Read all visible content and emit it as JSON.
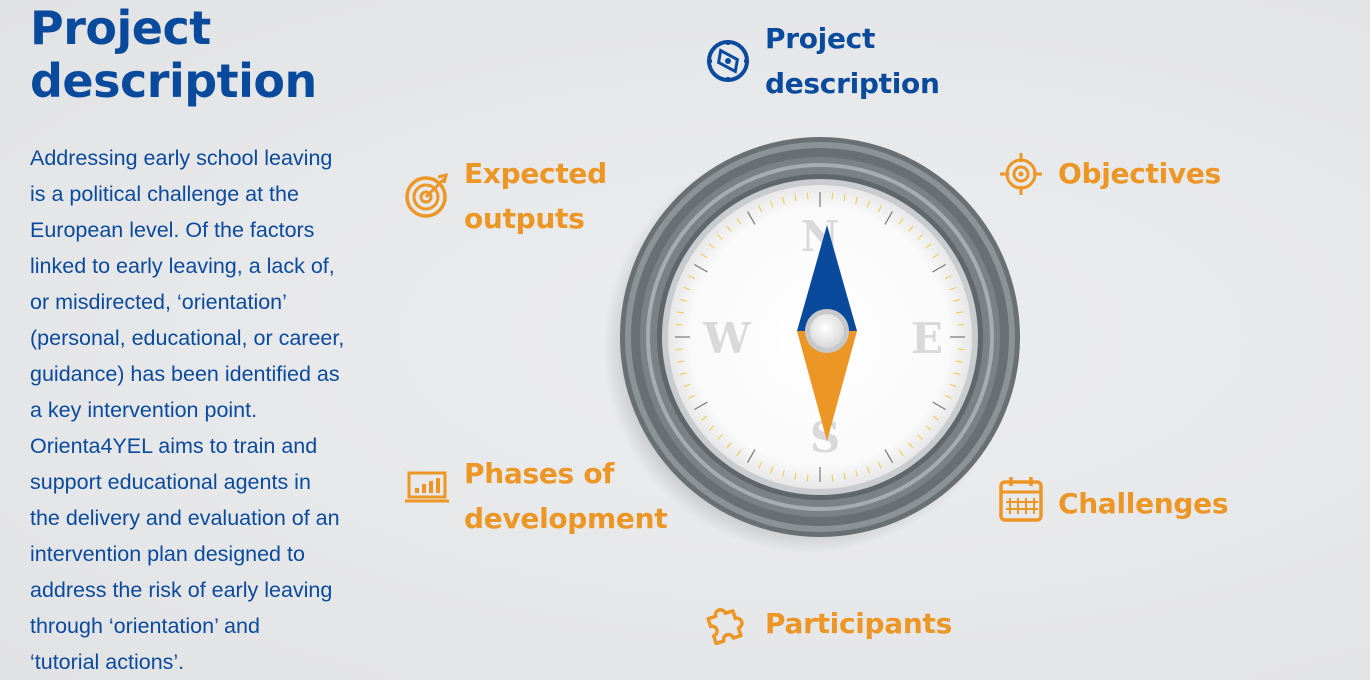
{
  "page": {
    "title_lines": [
      "Project",
      "description"
    ],
    "description_lines": [
      "Addressing early school leaving",
      "is a political challenge at the",
      "European level. Of the factors",
      "linked to early leaving, a lack of,",
      "or misdirected, ‘orientation’",
      "(personal, educational, or career,",
      "guidance) has been identified as",
      "a key intervention point.",
      "Orienta4YEL aims to train and",
      "support educational agents in",
      "the delivery and evaluation of an",
      "intervention plan designed to",
      "address the risk of early leaving",
      "through ‘orientation’ and",
      "‘tutorial actions’."
    ]
  },
  "nav": {
    "project_description": {
      "lines": [
        "Project",
        "description"
      ],
      "icon": "compass-icon",
      "active": true
    },
    "objectives": {
      "lines": [
        "Objectives"
      ],
      "icon": "crosshair-icon"
    },
    "expected_outputs": {
      "lines": [
        "Expected",
        "outputs"
      ],
      "icon": "target-arrow-icon"
    },
    "phases": {
      "lines": [
        "Phases of",
        "development"
      ],
      "icon": "laptop-chart-icon"
    },
    "challenges": {
      "lines": [
        "Challenges"
      ],
      "icon": "calendar-icon"
    },
    "participants": {
      "lines": [
        "Participants"
      ],
      "icon": "puzzle-icon"
    }
  },
  "compass": {
    "cardinals": {
      "north": "N",
      "east": "E",
      "south": "S",
      "west": "W"
    }
  },
  "colors": {
    "blue": "#0a4a9c",
    "orange": "#ec9626",
    "background": "#e6e7e9"
  }
}
